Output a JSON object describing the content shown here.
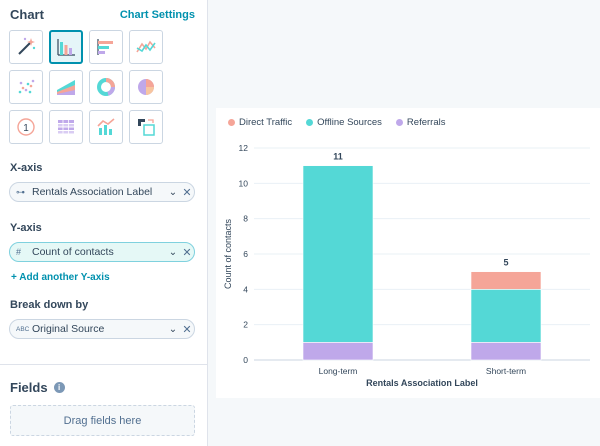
{
  "chart_section": {
    "title": "Chart",
    "settings_link": "Chart Settings"
  },
  "chart_types": [
    {
      "name": "auto-chart-icon",
      "selected": false
    },
    {
      "name": "vertical-bar-icon",
      "selected": true
    },
    {
      "name": "horizontal-bar-icon",
      "selected": false
    },
    {
      "name": "line-chart-icon",
      "selected": false
    },
    {
      "name": "scatter-icon",
      "selected": false
    },
    {
      "name": "area-chart-icon",
      "selected": false
    },
    {
      "name": "donut-chart-icon",
      "selected": false
    },
    {
      "name": "pie-chart-icon",
      "selected": false
    },
    {
      "name": "summary-number-icon",
      "selected": false
    },
    {
      "name": "table-icon",
      "selected": false
    },
    {
      "name": "combo-chart-icon",
      "selected": false
    },
    {
      "name": "pivot-table-icon",
      "selected": false
    }
  ],
  "x_axis": {
    "label": "X-axis",
    "value": "Rentals Association Label",
    "icon": "tree-icon"
  },
  "y_axis": {
    "label": "Y-axis",
    "value": "Count of contacts",
    "icon": "#",
    "add_link": "+ Add another Y-axis"
  },
  "break_down": {
    "label": "Break down by",
    "value": "Original Source",
    "icon": "ABC"
  },
  "fields": {
    "title": "Fields",
    "info": "i",
    "dropzone": "Drag fields here"
  },
  "chart_data": {
    "type": "bar",
    "stacked": true,
    "categories": [
      "Long-term",
      "Short-term"
    ],
    "series": [
      {
        "name": "Referrals",
        "color": "#bfa8ea",
        "values": [
          1,
          1
        ]
      },
      {
        "name": "Offline Sources",
        "color": "#54d8d6",
        "values": [
          10,
          3
        ]
      },
      {
        "name": "Direct Traffic",
        "color": "#f5a598",
        "values": [
          0,
          1
        ]
      }
    ],
    "legend_order": [
      "Direct Traffic",
      "Offline Sources",
      "Referrals"
    ],
    "totals": [
      "11",
      "5"
    ],
    "xlabel": "Rentals Association Label",
    "ylabel": "Count of contacts",
    "ylim": [
      0,
      12
    ],
    "yticks": [
      0,
      2,
      4,
      6,
      8,
      10,
      12
    ],
    "legend_position": "top-left",
    "grid": true
  }
}
